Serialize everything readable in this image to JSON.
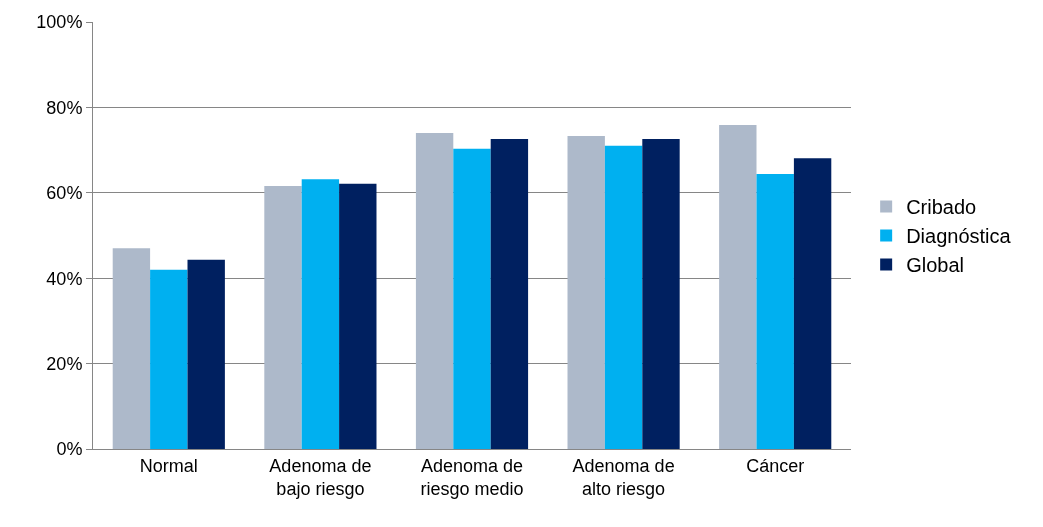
{
  "chart_data": {
    "type": "bar",
    "categories": [
      "Normal",
      "Adenoma de\nbajo riesgo",
      "Adenoma de\nriesgo medio",
      "Adenoma de\nalto riesgo",
      "Cáncer"
    ],
    "series": [
      {
        "name": "Cribado",
        "color": "#adb9ca",
        "values": [
          47,
          61.6,
          74,
          73.3,
          75.9
        ]
      },
      {
        "name": "Diagnóstica",
        "color": "#00b0f0",
        "values": [
          42,
          63.2,
          70.3,
          71,
          64.4
        ]
      },
      {
        "name": "Global",
        "color": "#002060",
        "values": [
          44.3,
          62.1,
          72.6,
          72.6,
          68.1
        ]
      }
    ],
    "ylim": [
      0,
      100
    ],
    "yticks": [
      {
        "value": 0,
        "label": "0%"
      },
      {
        "value": 20,
        "label": "20%"
      },
      {
        "value": 40,
        "label": "40%"
      },
      {
        "value": 60,
        "label": "60%"
      },
      {
        "value": 80,
        "label": "80%"
      },
      {
        "value": 100,
        "label": "100%"
      }
    ],
    "grid": "y",
    "legend": "right"
  }
}
